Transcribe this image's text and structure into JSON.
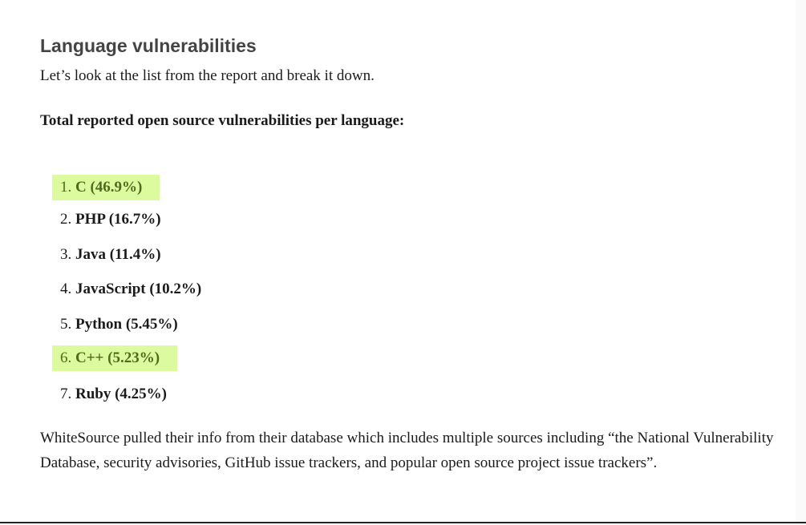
{
  "heading": "Language vulnerabilities",
  "intro": "Let’s look at the list from the report and break it down.",
  "subheading": "Total reported open source vulnerabilities per language:",
  "highlight_color": "#dcfb9e",
  "highlight_text_color": "#4d6b1c",
  "items": [
    {
      "num": "1.",
      "label": "C (46.9%)",
      "highlighted": true
    },
    {
      "num": "2.",
      "label": "PHP (16.7%)",
      "highlighted": false
    },
    {
      "num": "3.",
      "label": "Java (11.4%)",
      "highlighted": false
    },
    {
      "num": "4.",
      "label": "JavaScript (10.2%)",
      "highlighted": false
    },
    {
      "num": "5.",
      "label": "Python (5.45%)",
      "highlighted": false
    },
    {
      "num": "6.",
      "label": "C++ (5.23%)",
      "highlighted": true
    },
    {
      "num": "7.",
      "label": "Ruby (4.25%)",
      "highlighted": false
    }
  ],
  "outro": "WhiteSource pulled their info from their database which includes multiple sources including “the National Vulnerability Database, security advisories, GitHub issue trackers, and popular open source project issue trackers”."
}
